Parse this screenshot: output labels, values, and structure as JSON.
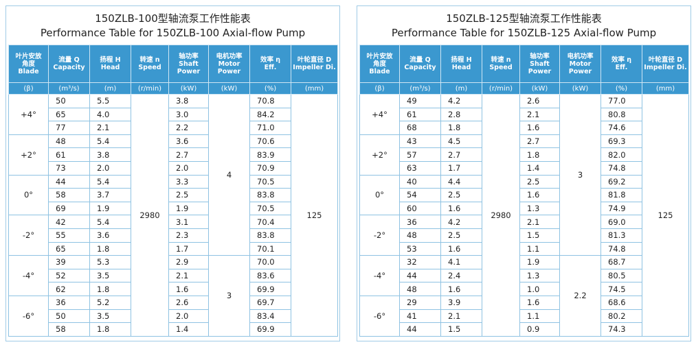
{
  "tables": [
    {
      "title_cn": "150ZLB-100型轴流泵工作性能表",
      "title_en": "Performance Table for 150ZLB-100 Axial-flow Pump",
      "headers": [
        [
          "叶片安放",
          "角度",
          "Blade"
        ],
        [
          "流量 Q",
          "Capacity"
        ],
        [
          "扬程 H",
          "Head"
        ],
        [
          "转速 n",
          "Speed"
        ],
        [
          "轴功率",
          "Shaft",
          "Power"
        ],
        [
          "电机功率",
          "Motor",
          "Power"
        ],
        [
          "效率 η",
          "Eff."
        ],
        [
          "叶轮直径 D",
          "Impeller Di."
        ]
      ],
      "units": [
        "(β)",
        "(m³/s)",
        "(m)",
        "(r/min)",
        "(kW)",
        "(kW)",
        "(%)",
        "(mm)"
      ],
      "speed": "2980",
      "impeller": "125",
      "sections": [
        {
          "motor": "4",
          "groups": [
            {
              "blade": "+4°",
              "rows": [
                [
                  "50",
                  "5.5",
                  "3.8",
                  "70.8"
                ],
                [
                  "65",
                  "4.0",
                  "3.0",
                  "84.2"
                ],
                [
                  "77",
                  "2.1",
                  "2.2",
                  "71.0"
                ]
              ]
            },
            {
              "blade": "+2°",
              "rows": [
                [
                  "48",
                  "5.4",
                  "3.6",
                  "70.6"
                ],
                [
                  "61",
                  "3.8",
                  "2.7",
                  "83.9"
                ],
                [
                  "73",
                  "2.0",
                  "2.0",
                  "70.9"
                ]
              ]
            },
            {
              "blade": "0°",
              "rows": [
                [
                  "44",
                  "5.4",
                  "3.3",
                  "70.5"
                ],
                [
                  "58",
                  "3.7",
                  "2.5",
                  "83.8"
                ],
                [
                  "69",
                  "1.9",
                  "1.9",
                  "70.5"
                ]
              ]
            },
            {
              "blade": "-2°",
              "rows": [
                [
                  "42",
                  "5.4",
                  "3.1",
                  "70.4"
                ],
                [
                  "55",
                  "3.6",
                  "2.3",
                  "83.8"
                ],
                [
                  "65",
                  "1.8",
                  "1.7",
                  "70.1"
                ]
              ]
            }
          ]
        },
        {
          "motor": "3",
          "groups": [
            {
              "blade": "-4°",
              "rows": [
                [
                  "39",
                  "5.3",
                  "2.9",
                  "70.0"
                ],
                [
                  "52",
                  "3.5",
                  "2.1",
                  "83.6"
                ],
                [
                  "62",
                  "1.8",
                  "1.6",
                  "69.9"
                ]
              ]
            },
            {
              "blade": "-6°",
              "rows": [
                [
                  "36",
                  "5.2",
                  "2.6",
                  "69.7"
                ],
                [
                  "50",
                  "3.5",
                  "2.0",
                  "83.4"
                ],
                [
                  "58",
                  "1.8",
                  "1.4",
                  "69.9"
                ]
              ]
            }
          ]
        }
      ]
    },
    {
      "title_cn": "150ZLB-125型轴流泵工作性能表",
      "title_en": "Performance Table for 150ZLB-125 Axial-flow Pump",
      "headers": [
        [
          "叶片安放",
          "角度",
          "Blade"
        ],
        [
          "流量 Q",
          "Capacity"
        ],
        [
          "扬程 H",
          "Head"
        ],
        [
          "转速 n",
          "Speed"
        ],
        [
          "轴功率",
          "Shaft",
          "Power"
        ],
        [
          "电机功率",
          "Motor",
          "Power"
        ],
        [
          "效率 η",
          "Eff."
        ],
        [
          "叶轮直径 D",
          "Impeller Di."
        ]
      ],
      "units": [
        "(β)",
        "(m³/s)",
        "(m)",
        "(r/min)",
        "(kW)",
        "(kW)",
        "(%)",
        "(mm)"
      ],
      "speed": "2980",
      "impeller": "125",
      "sections": [
        {
          "motor": "3",
          "groups": [
            {
              "blade": "+4°",
              "rows": [
                [
                  "49",
                  "4.2",
                  "2.6",
                  "77.0"
                ],
                [
                  "61",
                  "2.8",
                  "2.1",
                  "80.8"
                ],
                [
                  "68",
                  "1.8",
                  "1.6",
                  "74.6"
                ]
              ]
            },
            {
              "blade": "+2°",
              "rows": [
                [
                  "43",
                  "4.5",
                  "2.7",
                  "69.3"
                ],
                [
                  "57",
                  "2.7",
                  "1.8",
                  "82.0"
                ],
                [
                  "63",
                  "1.7",
                  "1.4",
                  "74.8"
                ]
              ]
            },
            {
              "blade": "0°",
              "rows": [
                [
                  "40",
                  "4.4",
                  "2.5",
                  "69.2"
                ],
                [
                  "54",
                  "2.5",
                  "1.6",
                  "81.8"
                ],
                [
                  "60",
                  "1.6",
                  "1.3",
                  "74.9"
                ]
              ]
            },
            {
              "blade": "-2°",
              "rows": [
                [
                  "36",
                  "4.2",
                  "2.1",
                  "69.0"
                ],
                [
                  "48",
                  "2.5",
                  "1.5",
                  "81.3"
                ],
                [
                  "53",
                  "1.6",
                  "1.1",
                  "74.8"
                ]
              ]
            }
          ]
        },
        {
          "motor": "2.2",
          "groups": [
            {
              "blade": "-4°",
              "rows": [
                [
                  "32",
                  "4.1",
                  "1.9",
                  "68.7"
                ],
                [
                  "44",
                  "2.4",
                  "1.3",
                  "80.5"
                ],
                [
                  "48",
                  "1.6",
                  "1.0",
                  "74.5"
                ]
              ]
            },
            {
              "blade": "-6°",
              "rows": [
                [
                  "29",
                  "3.9",
                  "1.6",
                  "68.6"
                ],
                [
                  "41",
                  "2.1",
                  "1.1",
                  "80.2"
                ],
                [
                  "44",
                  "1.5",
                  "0.9",
                  "74.3"
                ]
              ]
            }
          ]
        }
      ]
    }
  ]
}
